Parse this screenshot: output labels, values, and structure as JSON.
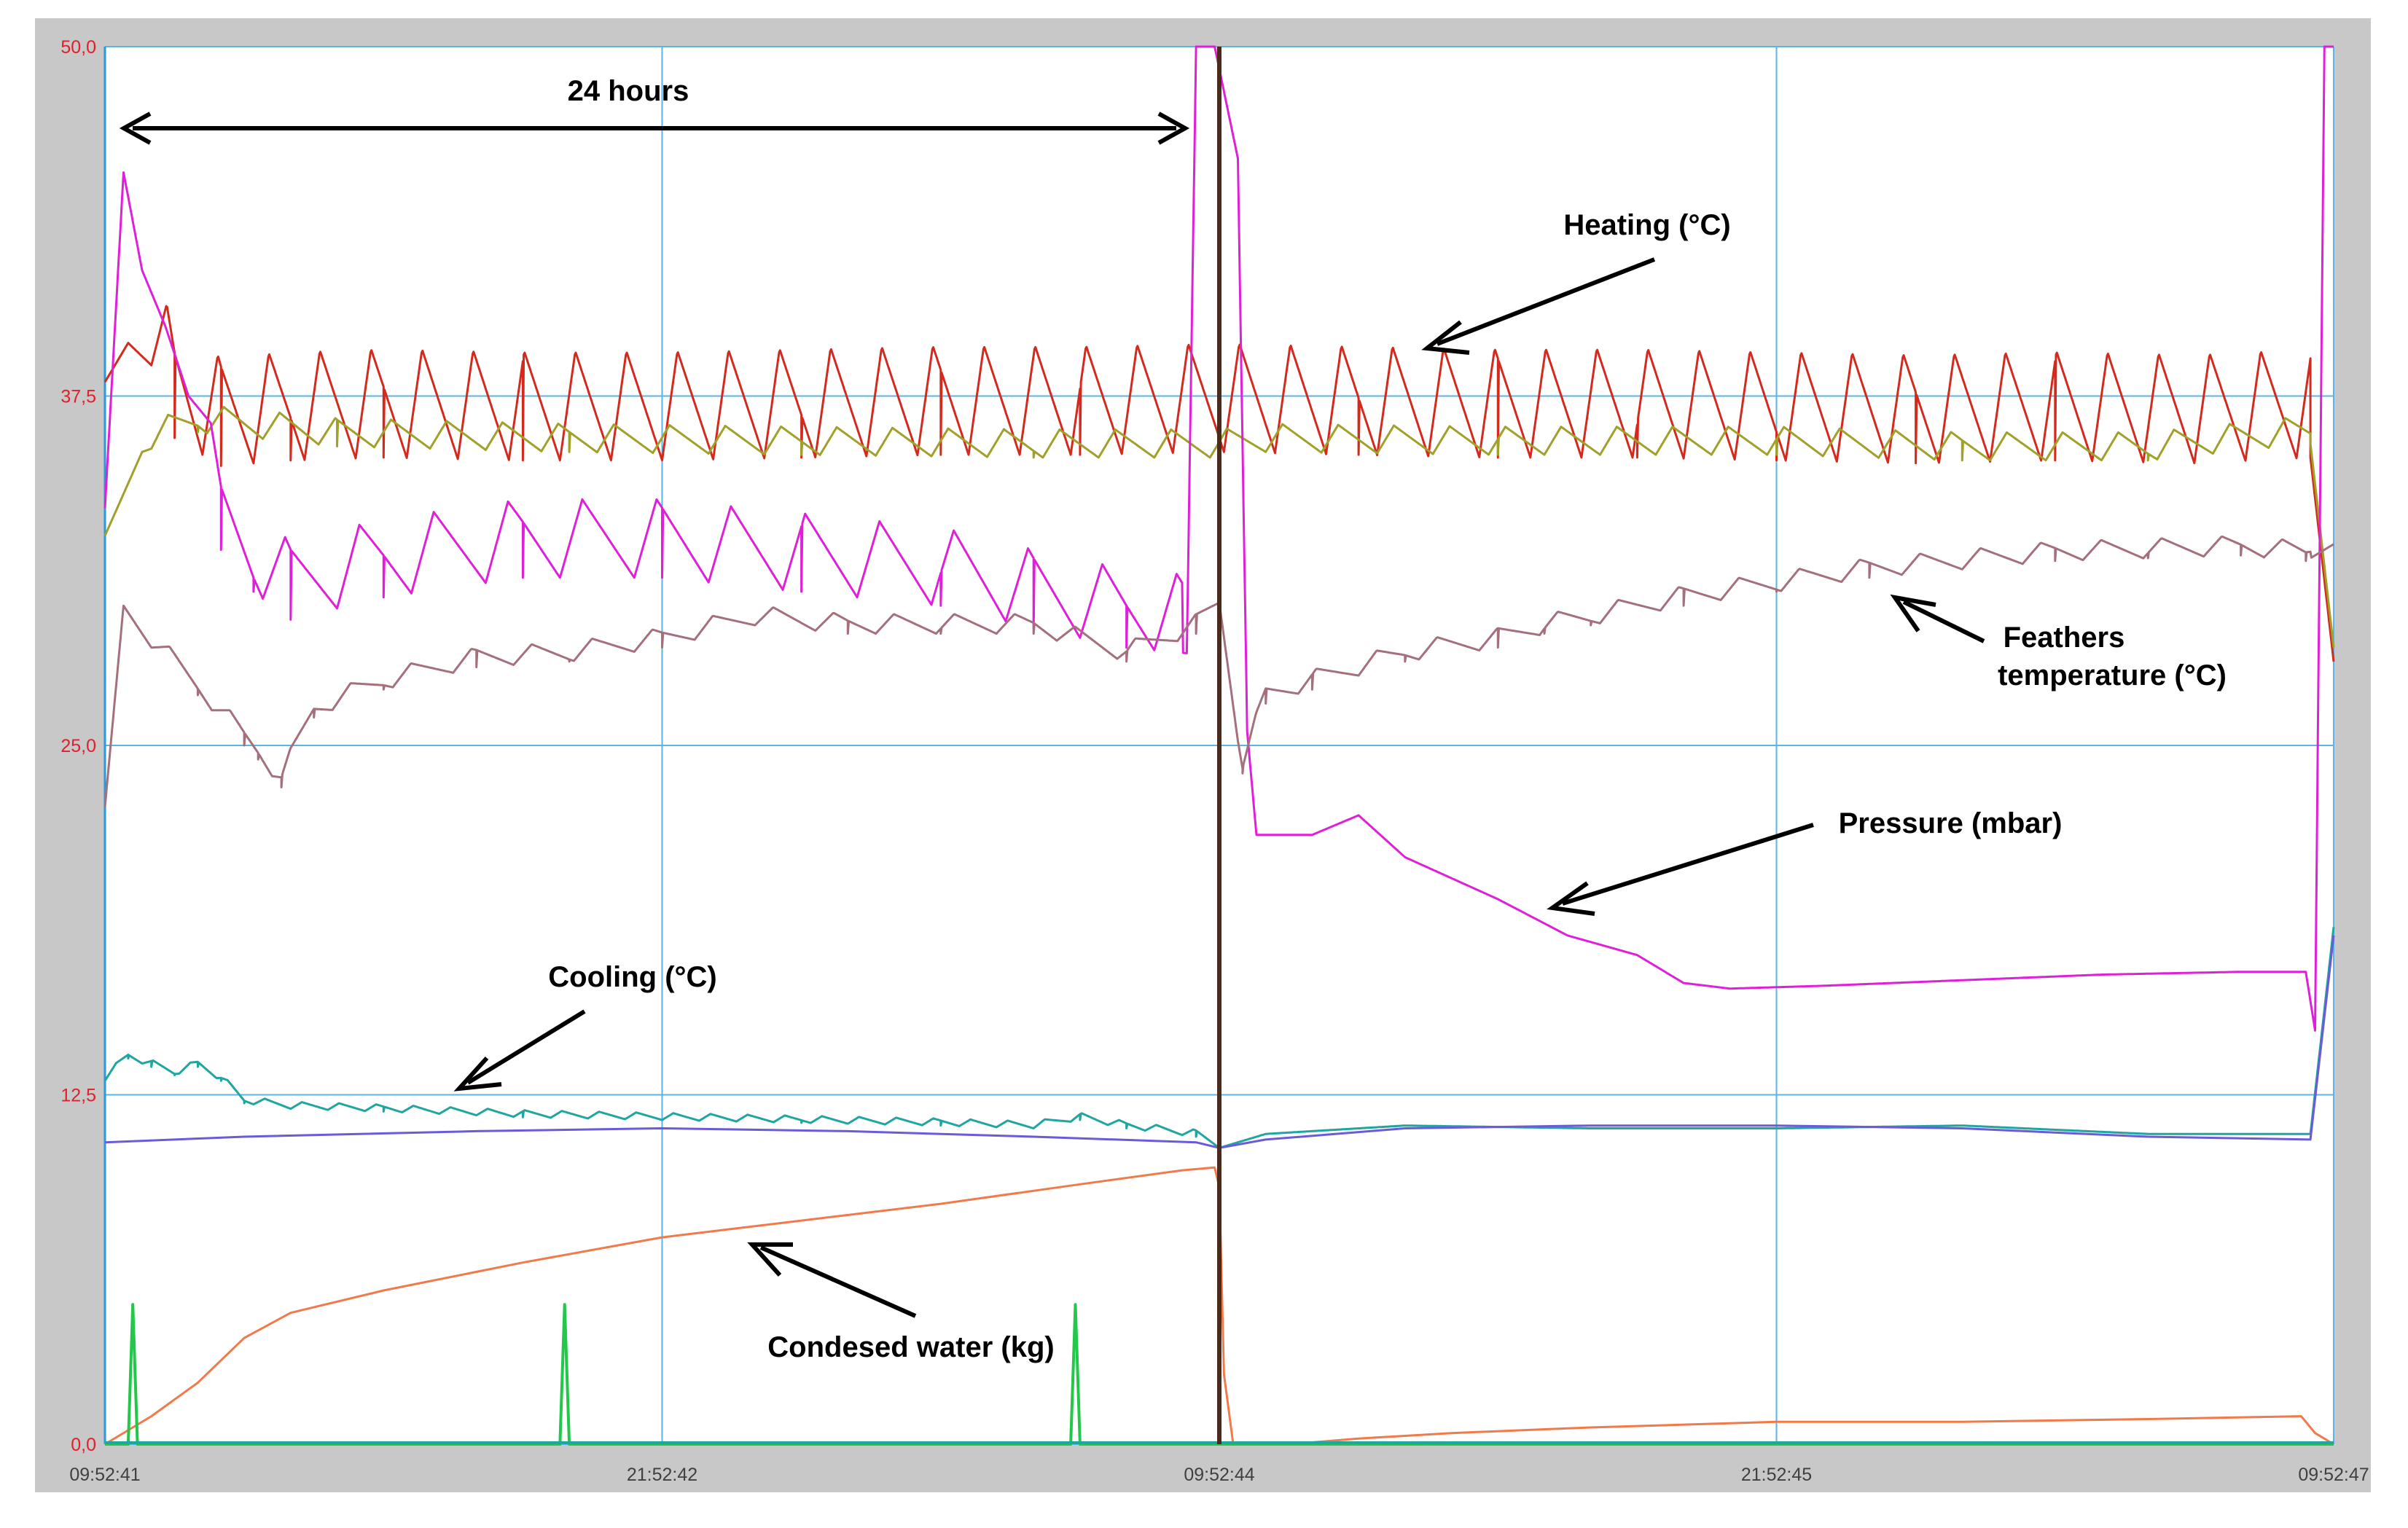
{
  "chart_data": {
    "type": "line",
    "title": "",
    "xlabel": "",
    "ylabel": "",
    "ylim": [
      0,
      50
    ],
    "y_ticks": [
      "0,0",
      "12,5",
      "25,0",
      "37,5",
      "50,0"
    ],
    "x_ticks": [
      "09:52:41",
      "21:52:42",
      "09:52:44",
      "21:52:45",
      "09:52:47"
    ],
    "x_unit": "hours",
    "xlim": [
      0,
      48
    ],
    "grid": true,
    "legend": "none",
    "colors": {
      "heating": "#d42a1e",
      "feathers": "#a0a02a",
      "pressure": "#e01fd8",
      "inner": "#a3707c",
      "cooling": "#1fa6a0",
      "coolbase": "#6a5cd6",
      "water": "#f07a4a",
      "pulse": "#22c84a",
      "marker": "#4a2a1a",
      "grid": "#5ab4e6",
      "frame_bg": "#c8c8c8"
    },
    "annotations": [
      {
        "id": "span",
        "text": "24 hours"
      },
      {
        "id": "heating",
        "text": "Heating (°C)"
      },
      {
        "id": "feathers1",
        "text": "Feathers"
      },
      {
        "id": "feathers2",
        "text": "temperature (°C)"
      },
      {
        "id": "pressure",
        "text": "Pressure (mbar)"
      },
      {
        "id": "cooling",
        "text": "Cooling (°C)"
      },
      {
        "id": "water",
        "text": "Condesed water (kg)"
      }
    ],
    "series": [
      {
        "key": "heating",
        "color": "#d42a1e",
        "values": [
          [
            0,
            38.0
          ],
          [
            0.5,
            39.4
          ],
          [
            1,
            38.6
          ],
          [
            1.5,
            36.0
          ],
          [
            2.5,
            35.0
          ],
          [
            4,
            35.2
          ],
          [
            6,
            35.3
          ],
          [
            9,
            35.2
          ],
          [
            12,
            35.2
          ],
          [
            15,
            35.3
          ],
          [
            18,
            35.4
          ],
          [
            21,
            35.4
          ],
          [
            24,
            35.5
          ],
          [
            27,
            35.4
          ],
          [
            30,
            35.3
          ],
          [
            33,
            35.3
          ],
          [
            36,
            35.2
          ],
          [
            39,
            35.1
          ],
          [
            42,
            35.2
          ],
          [
            45,
            35.1
          ],
          [
            47.5,
            35.3
          ],
          [
            48,
            28.0
          ]
        ],
        "oscillation": [
          [
            1,
            47.5,
            1.1,
            3.9
          ]
        ]
      },
      {
        "key": "feathers",
        "color": "#a0a02a",
        "values": [
          [
            0,
            32.5
          ],
          [
            0.8,
            35.5
          ],
          [
            2,
            36.2
          ],
          [
            5,
            35.7
          ],
          [
            10,
            35.5
          ],
          [
            15,
            35.4
          ],
          [
            20,
            35.3
          ],
          [
            24,
            35.3
          ],
          [
            25,
            35.5
          ],
          [
            30,
            35.4
          ],
          [
            36,
            35.4
          ],
          [
            40,
            35.2
          ],
          [
            44,
            35.2
          ],
          [
            47.5,
            35.8
          ],
          [
            48,
            28.5
          ]
        ],
        "oscillation": [
          [
            1,
            47.5,
            1.2,
            1.0
          ]
        ]
      },
      {
        "key": "pressure",
        "color": "#e01fd8",
        "values": [
          [
            0,
            33.5
          ],
          [
            0.4,
            45.5
          ],
          [
            0.8,
            42.0
          ],
          [
            1.3,
            40.0
          ],
          [
            1.8,
            37.5
          ],
          [
            2.5,
            32.0
          ],
          [
            3.2,
            30.5
          ],
          [
            4,
            29.5
          ],
          [
            6,
            30.3
          ],
          [
            9,
            31.0
          ],
          [
            12,
            31.0
          ],
          [
            15,
            30.5
          ],
          [
            18,
            30.0
          ],
          [
            20,
            29.2
          ],
          [
            22,
            28.5
          ],
          [
            23.3,
            28.3
          ],
          [
            23.5,
            50.0
          ],
          [
            23.9,
            50.0
          ],
          [
            24.4,
            46.0
          ],
          [
            24.6,
            25.5
          ],
          [
            24.8,
            21.8
          ],
          [
            26,
            21.8
          ],
          [
            27,
            22.5
          ],
          [
            28,
            21.0
          ],
          [
            30,
            19.5
          ],
          [
            31.5,
            18.2
          ],
          [
            33,
            17.5
          ],
          [
            34,
            16.5
          ],
          [
            35,
            16.3
          ],
          [
            37,
            16.4
          ],
          [
            40,
            16.6
          ],
          [
            43,
            16.8
          ],
          [
            46,
            16.9
          ],
          [
            47.4,
            16.9
          ],
          [
            47.6,
            14.8
          ],
          [
            47.8,
            50.0
          ],
          [
            48,
            50.0
          ]
        ],
        "oscillation": [
          [
            1.8,
            23.2,
            1.6,
            2.8
          ]
        ]
      },
      {
        "key": "inner",
        "color": "#a3707c",
        "values": [
          [
            0,
            22.8
          ],
          [
            0.4,
            30.0
          ],
          [
            1,
            28.5
          ],
          [
            2,
            26.8
          ],
          [
            3,
            25.0
          ],
          [
            3.3,
            24.5
          ],
          [
            3.8,
            23.5
          ],
          [
            4.5,
            26.0
          ],
          [
            6,
            27.0
          ],
          [
            8,
            27.8
          ],
          [
            10,
            28.0
          ],
          [
            12,
            28.5
          ],
          [
            14,
            29.3
          ],
          [
            16,
            29.0
          ],
          [
            18,
            29.0
          ],
          [
            20,
            29.0
          ],
          [
            22,
            28.0
          ],
          [
            23.5,
            29.0
          ],
          [
            24,
            29.8
          ],
          [
            24.5,
            24.0
          ],
          [
            25,
            26.5
          ],
          [
            26,
            27.0
          ],
          [
            28,
            28.0
          ],
          [
            30,
            28.5
          ],
          [
            31,
            29.0
          ],
          [
            32,
            29.3
          ],
          [
            34,
            30.0
          ],
          [
            36,
            30.5
          ],
          [
            38,
            31.0
          ],
          [
            40,
            31.3
          ],
          [
            42,
            31.6
          ],
          [
            44,
            31.7
          ],
          [
            46,
            31.8
          ],
          [
            47.4,
            31.6
          ],
          [
            48,
            32.2
          ]
        ],
        "oscillation": [
          [
            1,
            47.5,
            1.3,
            0.7
          ]
        ]
      },
      {
        "key": "cooling",
        "color": "#1fa6a0",
        "values": [
          [
            0,
            13.0
          ],
          [
            0.5,
            13.8
          ],
          [
            1,
            13.5
          ],
          [
            1.5,
            13.2
          ],
          [
            2,
            13.5
          ],
          [
            2.5,
            13.0
          ],
          [
            3,
            12.2
          ],
          [
            4,
            12.0
          ],
          [
            6,
            11.9
          ],
          [
            9,
            11.7
          ],
          [
            12,
            11.6
          ],
          [
            15,
            11.5
          ],
          [
            18,
            11.4
          ],
          [
            20,
            11.3
          ],
          [
            21,
            11.6
          ],
          [
            22,
            11.3
          ],
          [
            23.5,
            11.0
          ],
          [
            24,
            10.6
          ],
          [
            25,
            11.1
          ],
          [
            28,
            11.4
          ],
          [
            32,
            11.3
          ],
          [
            36,
            11.3
          ],
          [
            40,
            11.4
          ],
          [
            44,
            11.1
          ],
          [
            47.5,
            11.1
          ],
          [
            48,
            18.5
          ]
        ],
        "oscillation": [
          [
            0,
            24,
            0.8,
            0.25
          ]
        ]
      },
      {
        "key": "coolbase",
        "color": "#6a5cd6",
        "values": [
          [
            0,
            10.8
          ],
          [
            3,
            11.0
          ],
          [
            8,
            11.2
          ],
          [
            12,
            11.3
          ],
          [
            16,
            11.2
          ],
          [
            20,
            11.0
          ],
          [
            23.5,
            10.8
          ],
          [
            24,
            10.6
          ],
          [
            25,
            10.9
          ],
          [
            28,
            11.3
          ],
          [
            32,
            11.4
          ],
          [
            36,
            11.4
          ],
          [
            40,
            11.3
          ],
          [
            44,
            11.0
          ],
          [
            47.5,
            10.9
          ],
          [
            48,
            18.2
          ]
        ]
      },
      {
        "key": "water",
        "color": "#f07a4a",
        "values": [
          [
            0,
            0
          ],
          [
            1,
            1.0
          ],
          [
            2,
            2.2
          ],
          [
            3,
            3.8
          ],
          [
            4,
            4.7
          ],
          [
            6,
            5.5
          ],
          [
            9,
            6.5
          ],
          [
            12,
            7.4
          ],
          [
            15,
            8.0
          ],
          [
            18,
            8.6
          ],
          [
            21,
            9.3
          ],
          [
            23.2,
            9.8
          ],
          [
            23.9,
            9.9
          ],
          [
            24.0,
            9.2
          ],
          [
            24.1,
            2.5
          ],
          [
            24.3,
            0
          ],
          [
            25.5,
            0
          ],
          [
            27,
            0.2
          ],
          [
            29,
            0.4
          ],
          [
            32,
            0.6
          ],
          [
            36,
            0.8
          ],
          [
            40,
            0.8
          ],
          [
            44,
            0.9
          ],
          [
            47.3,
            1.0
          ],
          [
            47.6,
            0.4
          ],
          [
            48,
            0
          ]
        ]
      },
      {
        "key": "pulse",
        "color": "#22c84a",
        "values": [
          [
            0,
            0
          ],
          [
            0.5,
            0
          ],
          [
            0.6,
            5.0
          ],
          [
            0.7,
            0
          ],
          [
            9.8,
            0
          ],
          [
            9.9,
            5.0
          ],
          [
            10.0,
            0
          ],
          [
            20.8,
            0
          ],
          [
            20.9,
            5.0
          ],
          [
            21.0,
            0
          ],
          [
            48,
            0
          ]
        ]
      }
    ]
  }
}
